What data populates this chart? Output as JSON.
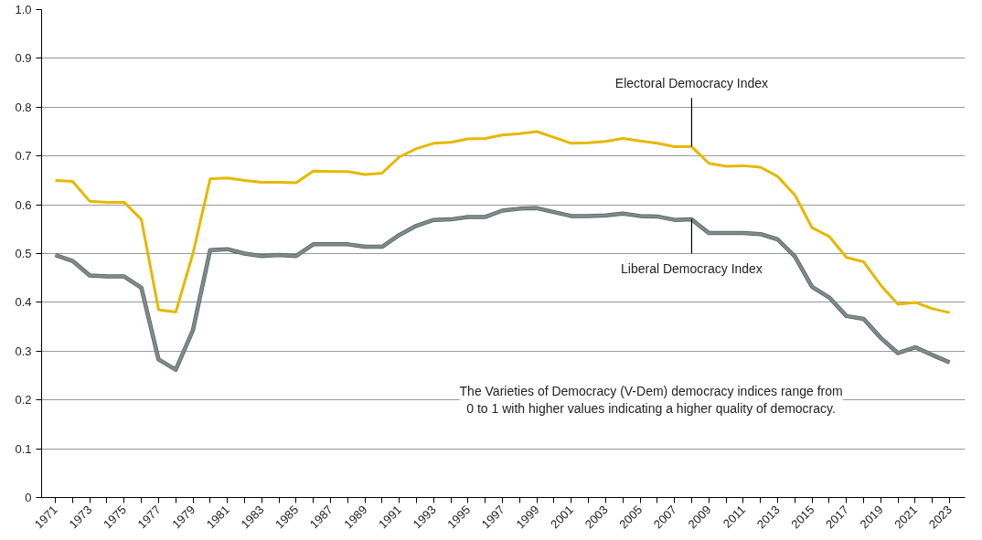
{
  "chart_data": {
    "type": "line",
    "x": [
      1971,
      1972,
      1973,
      1974,
      1975,
      1976,
      1977,
      1978,
      1979,
      1980,
      1981,
      1982,
      1983,
      1984,
      1985,
      1986,
      1987,
      1988,
      1989,
      1990,
      1991,
      1992,
      1993,
      1994,
      1995,
      1996,
      1997,
      1998,
      1999,
      2000,
      2001,
      2002,
      2003,
      2004,
      2005,
      2006,
      2007,
      2008,
      2009,
      2010,
      2011,
      2012,
      2013,
      2014,
      2015,
      2016,
      2017,
      2018,
      2019,
      2020,
      2021,
      2022,
      2023
    ],
    "series": [
      {
        "color": "#e6b800",
        "values": [
          0.65,
          0.648,
          0.607,
          0.605,
          0.605,
          0.57,
          0.385,
          0.38,
          0.5,
          0.653,
          0.655,
          0.65,
          0.646,
          0.646,
          0.645,
          0.669,
          0.668,
          0.668,
          0.662,
          0.665,
          0.698,
          0.715,
          0.726,
          0.728,
          0.735,
          0.736,
          0.743,
          0.746,
          0.75,
          0.738,
          0.726,
          0.727,
          0.73,
          0.736,
          0.731,
          0.726,
          0.719,
          0.719,
          0.685,
          0.679,
          0.68,
          0.677,
          0.658,
          0.62,
          0.553,
          0.535,
          0.492,
          0.483,
          0.435,
          0.396,
          0.4,
          0.387,
          0.379
        ]
      },
      {
        "color": "#7f8b8b",
        "values": [
          0.497,
          0.485,
          0.455,
          0.453,
          0.453,
          0.43,
          0.283,
          0.262,
          0.343,
          0.507,
          0.509,
          0.5,
          0.495,
          0.497,
          0.495,
          0.519,
          0.519,
          0.519,
          0.514,
          0.514,
          0.538,
          0.557,
          0.569,
          0.57,
          0.575,
          0.575,
          0.588,
          0.592,
          0.593,
          0.585,
          0.577,
          0.577,
          0.578,
          0.582,
          0.577,
          0.576,
          0.569,
          0.57,
          0.542,
          0.542,
          0.542,
          0.54,
          0.529,
          0.494,
          0.432,
          0.41,
          0.372,
          0.366,
          0.327,
          0.296,
          0.308,
          0.292,
          0.277
        ]
      }
    ],
    "annotations": [
      {
        "text": "Electoral Democracy Index",
        "x": 2008,
        "y": 0.719
      },
      {
        "text": "Liberal Democracy Index",
        "x": 2008,
        "y": 0.57
      },
      "The Varieties of Democracy (V-Dem) democracy indices range from\n0 to 1 with higher values indicating a higher quality of democracy."
    ],
    "xlim": [
      1970.2,
      2023.9
    ],
    "xticks": [
      1971,
      {
        "value": 1972,
        "label": null
      },
      1973,
      {
        "value": 1974,
        "label": null
      },
      1975,
      {
        "value": 1976,
        "label": null
      },
      1977,
      {
        "value": 1978,
        "label": null
      },
      1979,
      {
        "value": 1980,
        "label": null
      },
      1981,
      {
        "value": 1982,
        "label": null
      },
      1983,
      {
        "value": 1984,
        "label": null
      },
      1985,
      {
        "value": 1986,
        "label": null
      },
      1987,
      {
        "value": 1988,
        "label": null
      },
      1989,
      {
        "value": 1990,
        "label": null
      },
      1991,
      {
        "value": 1992,
        "label": null
      },
      1993,
      {
        "value": 1994,
        "label": null
      },
      1995,
      {
        "value": 1996,
        "label": null
      },
      1997,
      {
        "value": 1998,
        "label": null
      },
      1999,
      {
        "value": 2000,
        "label": null
      },
      2001,
      {
        "value": 2002,
        "label": null
      },
      2003,
      {
        "value": 2004,
        "label": null
      },
      2005,
      {
        "value": 2006,
        "label": null
      },
      2007,
      {
        "value": 2008,
        "label": null
      },
      2009,
      {
        "value": 2010,
        "label": null
      },
      2011,
      {
        "value": 2012,
        "label": null
      },
      2013,
      {
        "value": 2014,
        "label": null
      },
      2015,
      {
        "value": 2016,
        "label": null
      },
      2017,
      {
        "value": 2018,
        "label": null
      },
      2019,
      {
        "value": 2020,
        "label": null
      },
      2021,
      {
        "value": 2022,
        "label": null
      },
      2023
    ],
    "ylim": [
      0,
      1
    ],
    "yticks": [
      0,
      0.1,
      0.2,
      0.3,
      0.4,
      0.5,
      0.6,
      0.7,
      0.8,
      0.9,
      {
        "value": 1,
        "label": "1.0"
      }
    ],
    "grid": "y",
    "marker": "none",
    "line_style": "solid"
  }
}
